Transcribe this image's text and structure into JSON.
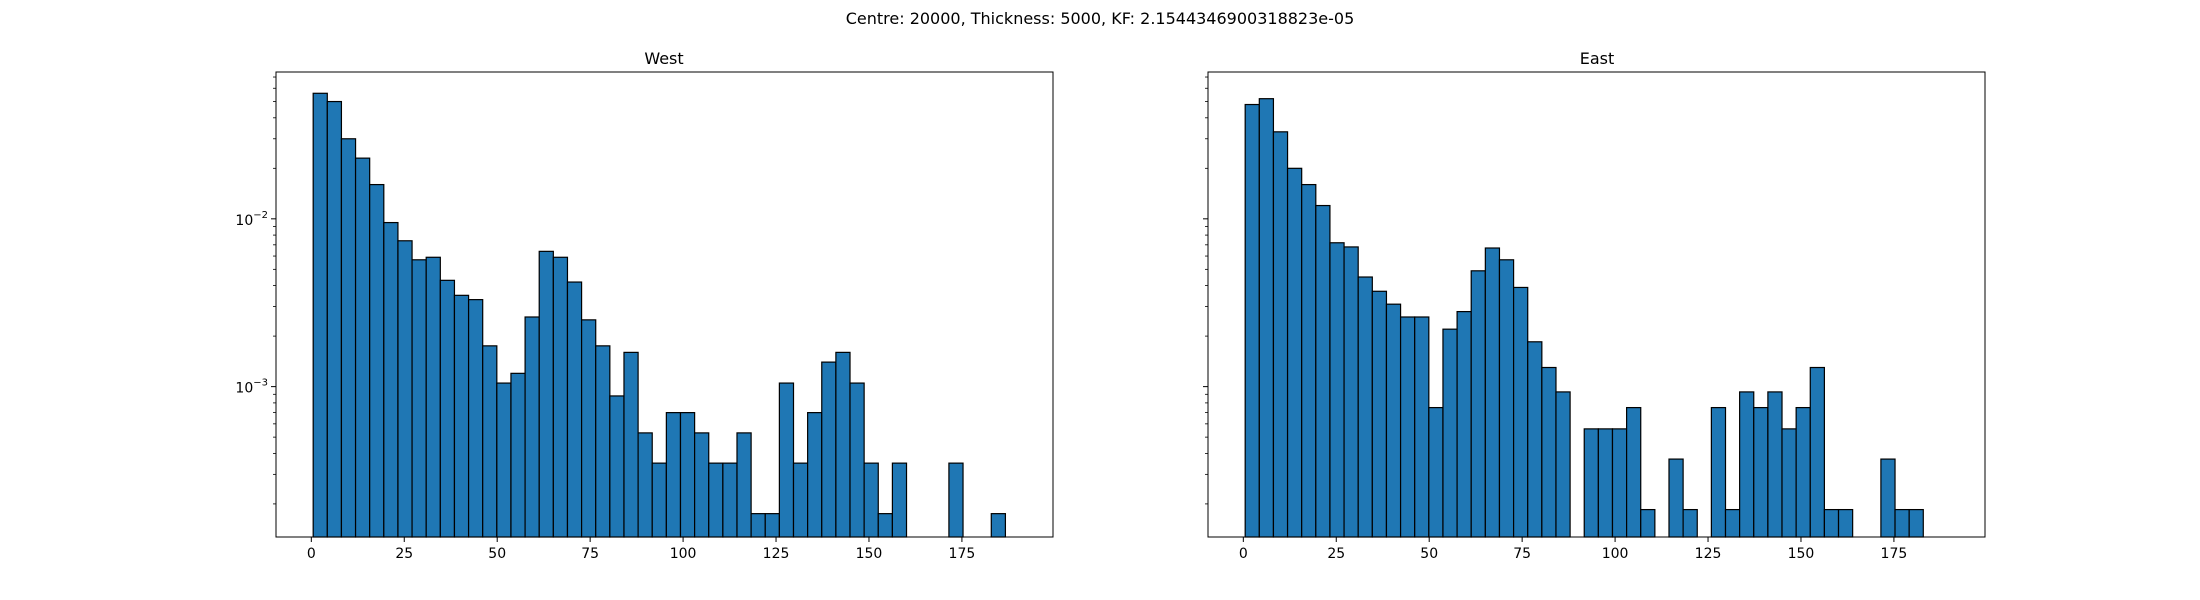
{
  "suptitle": "Centre: 20000, Thickness: 5000, KF: 2.1544346900318823e-05",
  "colors": {
    "bar_fill": "#1f77b4",
    "bar_edge": "#000000",
    "axes": "#000000"
  },
  "chart_data": [
    {
      "type": "bar",
      "title": "West",
      "xlabel": "",
      "ylabel": "",
      "yscale": "log",
      "shared_y": true,
      "xlim": [
        -9.5,
        199.5
      ],
      "ylim": [
        0.000127,
        0.075
      ],
      "xticks": [
        0,
        25,
        50,
        75,
        100,
        125,
        150,
        175
      ],
      "yticks": [
        {
          "value": 0.01,
          "label": "10",
          "exp": "−2"
        },
        {
          "value": 0.001,
          "label": "10",
          "exp": "−3"
        }
      ],
      "bin_width": 3.8,
      "bin_start": 0.5,
      "values": [
        0.056,
        0.05,
        0.03,
        0.023,
        0.016,
        0.0095,
        0.0074,
        0.0057,
        0.0059,
        0.0043,
        0.0035,
        0.0033,
        0.00175,
        0.00105,
        0.0012,
        0.0026,
        0.0064,
        0.0059,
        0.0042,
        0.0025,
        0.00175,
        0.00088,
        0.0016,
        0.00053,
        0.00035,
        0.0007,
        0.0007,
        0.00053,
        0.00035,
        0.00035,
        0.00053,
        0.000175,
        0.000175,
        0.00105,
        0.00035,
        0.0007,
        0.0014,
        0.0016,
        0.00105,
        0.00035,
        0.000175,
        0.00035,
        0,
        0,
        0,
        0.00035,
        0,
        0,
        0.000175
      ]
    },
    {
      "type": "bar",
      "title": "East",
      "xlabel": "",
      "ylabel": "",
      "yscale": "log",
      "shared_y": true,
      "xlim": [
        -9.5,
        199.5
      ],
      "ylim": [
        0.000127,
        0.075
      ],
      "xticks": [
        0,
        25,
        50,
        75,
        100,
        125,
        150,
        175
      ],
      "yticks": [],
      "bin_width": 3.8,
      "bin_start": 0.5,
      "values": [
        0.048,
        0.052,
        0.033,
        0.02,
        0.016,
        0.012,
        0.0072,
        0.0068,
        0.0045,
        0.0037,
        0.0031,
        0.0026,
        0.0026,
        0.00075,
        0.0022,
        0.0028,
        0.0049,
        0.0067,
        0.0057,
        0.0039,
        0.00185,
        0.0013,
        0.00093,
        0,
        0.00056,
        0.00056,
        0.00056,
        0.00075,
        0.000185,
        0,
        0.00037,
        0.000185,
        0,
        0.00075,
        0.000185,
        0.00093,
        0.00075,
        0.00093,
        0.00056,
        0.00075,
        0.0013,
        0.000185,
        0.000185,
        0,
        0,
        0.00037,
        0.000185,
        0.000185
      ]
    }
  ]
}
